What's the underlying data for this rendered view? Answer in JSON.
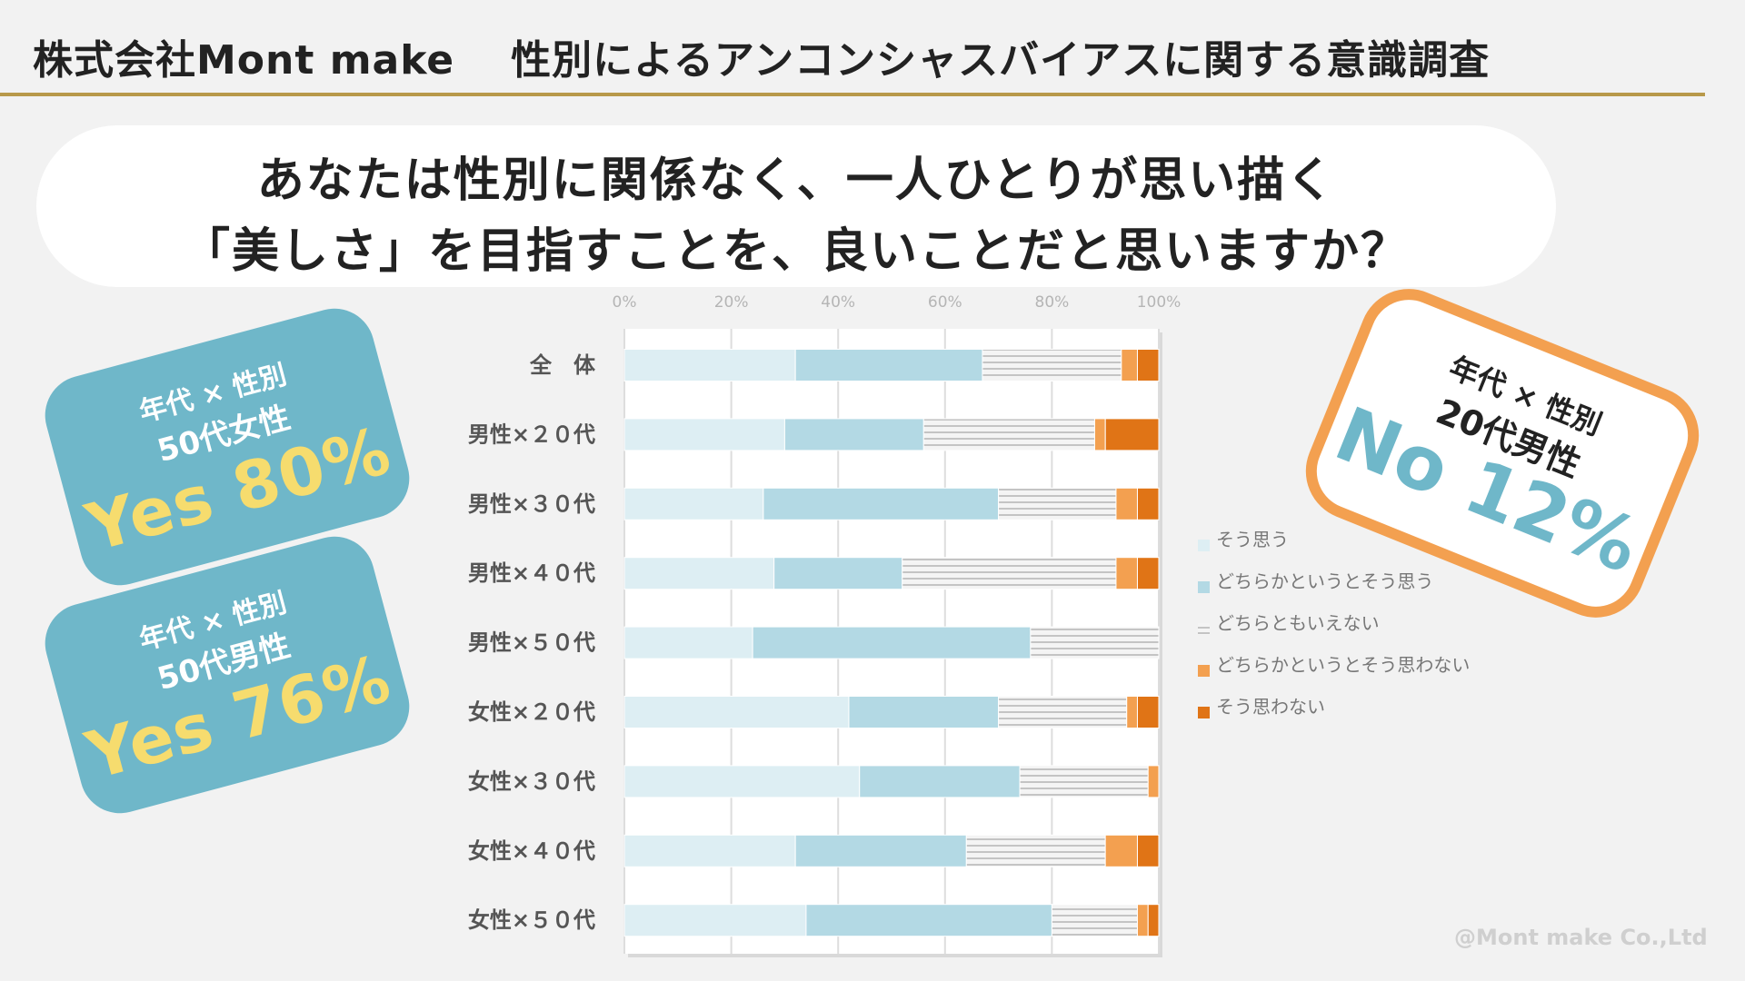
{
  "header": {
    "company": "株式会社Mont make",
    "title": "性別によるアンコンシャスバイアスに関する意識調査"
  },
  "question": {
    "line1": "あなたは性別に関係なく、一人ひとりが思い描く",
    "line2": "「美しさ」を目指すことを、良いことだと思いますか？"
  },
  "callouts": {
    "female50": {
      "label": "年代 × 性別",
      "segment": "50代女性",
      "result": "Yes 80%"
    },
    "male50": {
      "label": "年代 × 性別",
      "segment": "50代男性",
      "result": "Yes 76%"
    },
    "male20": {
      "label": "年代 × 性別",
      "segment": "20代男性",
      "result": "No 12%"
    }
  },
  "chart_data": {
    "type": "bar",
    "orientation": "horizontal",
    "stacked": true,
    "categories": [
      "全　体",
      "男性×２０代",
      "男性×３０代",
      "男性×４０代",
      "男性×５０代",
      "女性×２０代",
      "女性×３０代",
      "女性×４０代",
      "女性×５０代"
    ],
    "x_ticks": [
      "0%",
      "20%",
      "40%",
      "60%",
      "80%",
      "100%"
    ],
    "xlim": [
      0,
      100
    ],
    "grid": true,
    "legend_position": "right",
    "series": [
      {
        "name": "そう思う",
        "color": "#ddeef3",
        "pattern": "solid",
        "values": [
          32,
          30,
          26,
          28,
          24,
          42,
          44,
          32,
          34
        ]
      },
      {
        "name": "どちらかというとそう思う",
        "color": "#b3d9e4",
        "pattern": "solid",
        "values": [
          35,
          26,
          44,
          24,
          52,
          28,
          30,
          32,
          46
        ]
      },
      {
        "name": "どちらともいえない",
        "color": "#f2f2f2",
        "pattern": "lines",
        "values": [
          26,
          32,
          22,
          40,
          24,
          24,
          24,
          26,
          16
        ]
      },
      {
        "name": "どちらかというとそう思わない",
        "color": "#f3a050",
        "pattern": "solid",
        "values": [
          3,
          2,
          4,
          4,
          0,
          2,
          2,
          6,
          2
        ]
      },
      {
        "name": "そう思わない",
        "color": "#e07416",
        "pattern": "solid",
        "values": [
          4,
          10,
          4,
          4,
          0,
          4,
          0,
          4,
          2
        ]
      }
    ]
  },
  "copyright": "@Mont make Co.,Ltd"
}
